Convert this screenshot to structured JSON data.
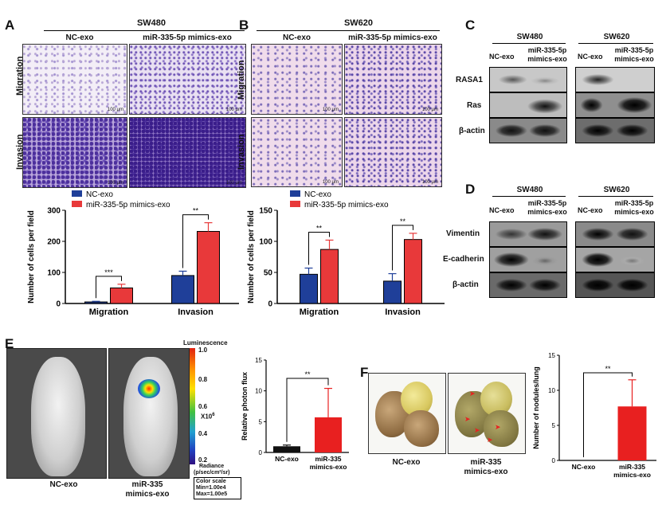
{
  "panels": {
    "A": {
      "label": "A",
      "cell_line": "SW480",
      "col_nc": "NC-exo",
      "col_mimic": "miR-335-5p mimics-exo",
      "row_migration": "Migration",
      "row_invasion": "Invasion",
      "scale_bar": "100 μm"
    },
    "B": {
      "label": "B",
      "cell_line": "SW620",
      "col_nc": "NC-exo",
      "col_mimic": "miR-335-5p mimics-exo",
      "row_migration": "Migration",
      "row_invasion": "Invasion",
      "scale_bar": "100 μm"
    },
    "C": {
      "label": "C",
      "cell_line_1": "SW480",
      "cell_line_2": "SW620",
      "lane_nc": "NC-exo",
      "lane_mimic_1": "miR-335-5p",
      "lane_mimic_2": "mimics-exo",
      "rows": [
        "RASA1",
        "Ras",
        "β-actin"
      ]
    },
    "D": {
      "label": "D",
      "cell_line_1": "SW480",
      "cell_line_2": "SW620",
      "lane_nc": "NC-exo",
      "lane_mimic_1": "miR-335-5p",
      "lane_mimic_2": "mimics-exo",
      "rows": [
        "Vimentin",
        "E-cadherin",
        "β-actin"
      ]
    },
    "E": {
      "label": "E",
      "mouse_nc": "NC-exo",
      "mouse_mimic_1": "miR-335",
      "mouse_mimic_2": "mimics-exo",
      "colorbar_title": "Luminescence",
      "colorbar_ticks": [
        "1.0",
        "0.8",
        "0.6",
        "0.4",
        "0.2"
      ],
      "colorbar_unit": "X10",
      "colorbar_unit_exp": "6",
      "radiance_label": "Radiance",
      "radiance_unit": "(p/sec/cm²/sr)",
      "color_scale_title": "Color scale",
      "color_scale_min": "Min=1.00e4",
      "color_scale_max": "Max=1.00e5"
    },
    "F": {
      "label": "F",
      "lung_nc": "NC-exo",
      "lung_mimic_1": "miR-335",
      "lung_mimic_2": "mimics-exo"
    }
  },
  "colors": {
    "nc_blue": "#1f3f99",
    "mimic_red": "#e8393a",
    "black": "#111111",
    "red_bright": "#e82020"
  },
  "chart_data": [
    {
      "id": "A-chart",
      "type": "bar",
      "categories": [
        "Migration",
        "Invasion"
      ],
      "series": [
        {
          "name": "NC-exo",
          "values": [
            5,
            90
          ],
          "errors": [
            2,
            14
          ]
        },
        {
          "name": "miR-335-5p mimics-exo",
          "values": [
            50,
            232
          ],
          "errors": [
            12,
            28
          ]
        }
      ],
      "ylabel": "Number of cells per field",
      "ylim": [
        0,
        300
      ],
      "yticks": [
        "0",
        "100",
        "200",
        "300"
      ],
      "significance": [
        "***",
        "**"
      ],
      "legend_position": "top-left"
    },
    {
      "id": "B-chart",
      "type": "bar",
      "categories": [
        "Migration",
        "Invasion"
      ],
      "series": [
        {
          "name": "NC-exo",
          "values": [
            47,
            36
          ],
          "errors": [
            10,
            12
          ]
        },
        {
          "name": "miR-335-5p mimics-exo",
          "values": [
            87,
            103
          ],
          "errors": [
            15,
            10
          ]
        }
      ],
      "ylabel": "Number of cells per field",
      "ylim": [
        0,
        150
      ],
      "yticks": [
        "0",
        "50",
        "100",
        "150"
      ],
      "significance": [
        "**",
        "**"
      ],
      "legend_position": "top-left"
    },
    {
      "id": "E-chart",
      "type": "bar",
      "categories": [
        "NC-exo",
        "miR-335 mimics-exo"
      ],
      "values": [
        1.0,
        5.7
      ],
      "errors": [
        0.2,
        4.7
      ],
      "ylabel": "Relative photon flux",
      "ylim": [
        0,
        15
      ],
      "yticks": [
        "0",
        "5",
        "10",
        "15"
      ],
      "significance": "**"
    },
    {
      "id": "F-chart",
      "type": "bar",
      "categories": [
        "NC-exo",
        "miR-335 mimics-exo"
      ],
      "values": [
        0,
        7.7
      ],
      "errors": [
        0,
        3.8
      ],
      "ylabel": "Number of nodules/lung",
      "ylim": [
        0,
        15
      ],
      "yticks": [
        "0",
        "5",
        "10",
        "15"
      ],
      "significance": "**"
    }
  ]
}
